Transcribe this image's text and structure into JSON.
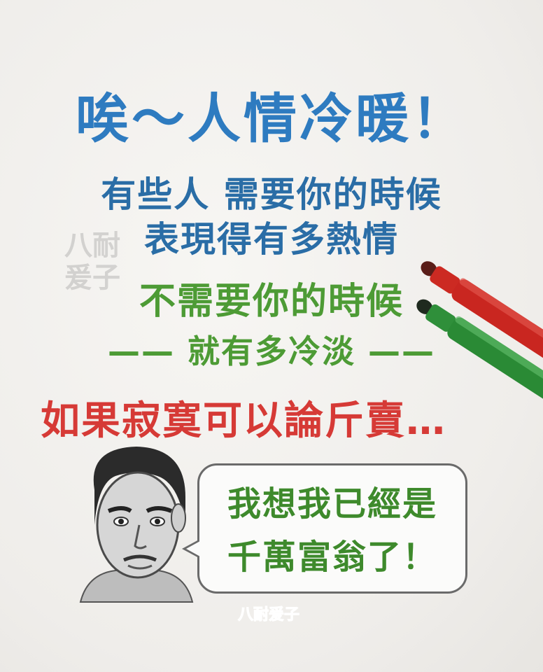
{
  "title": "唉～人情冷暖！",
  "lines": {
    "line1": "有些人 需要你的時候",
    "line2": "表現得有多熱情",
    "line3": "不需要你的時候",
    "line4": "—— 就有多冷淡 ——",
    "line5": "如果寂寞可以論斤賣…"
  },
  "bubble": {
    "line1": "我想我已經是",
    "line2": "千萬富翁了！"
  },
  "watermark": {
    "top": "八耐 爰子",
    "bottom": "八耐爰子"
  },
  "colors": {
    "blue": "#2e7bc0",
    "green": "#4d9b35",
    "red": "#d63a36",
    "paper": "#f2f0ed"
  },
  "icons": {
    "face": "portrait-face-icon",
    "red_marker": "red-marker-icon",
    "green_marker": "green-marker-icon"
  }
}
